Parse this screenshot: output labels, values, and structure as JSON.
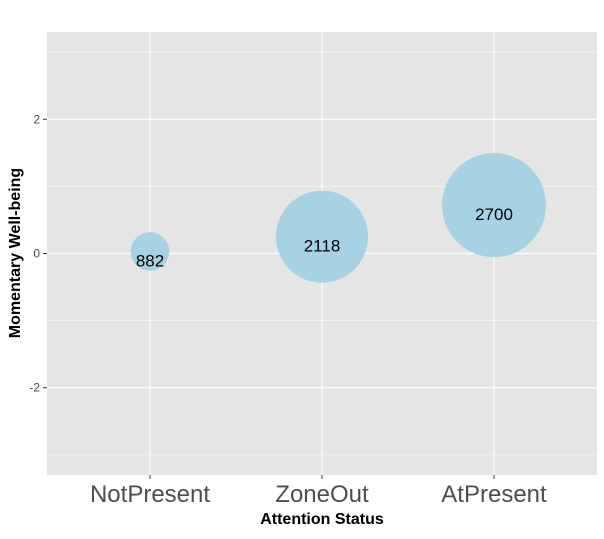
{
  "chart_data": {
    "type": "scatter",
    "subtype": "bubble",
    "title": "",
    "xlabel": "Attention Status",
    "ylabel": "Momentary Well-being",
    "categories": [
      "NotPresent",
      "ZoneOut",
      "AtPresent"
    ],
    "ylim": [
      -3.3,
      3.3
    ],
    "yticks": [
      -2,
      0,
      2
    ],
    "ytick_labels": [
      "-2",
      "0",
      "2"
    ],
    "grid": true,
    "legend": "none",
    "series": [
      {
        "name": "Attention Status",
        "points": [
          {
            "category": "NotPresent",
            "y": 0.03,
            "size": 882,
            "label": "882"
          },
          {
            "category": "ZoneOut",
            "y": 0.25,
            "size": 2118,
            "label": "2118"
          },
          {
            "category": "AtPresent",
            "y": 0.72,
            "size": 2700,
            "label": "2700"
          }
        ]
      }
    ],
    "colors": {
      "panel_background": "#e5e5e5",
      "grid_line": "#ffffff",
      "bubble_fill": "#a6d2e3",
      "label_text": "#000000",
      "axis_text": "#4d4d4d",
      "axis_title": "#000000"
    }
  }
}
